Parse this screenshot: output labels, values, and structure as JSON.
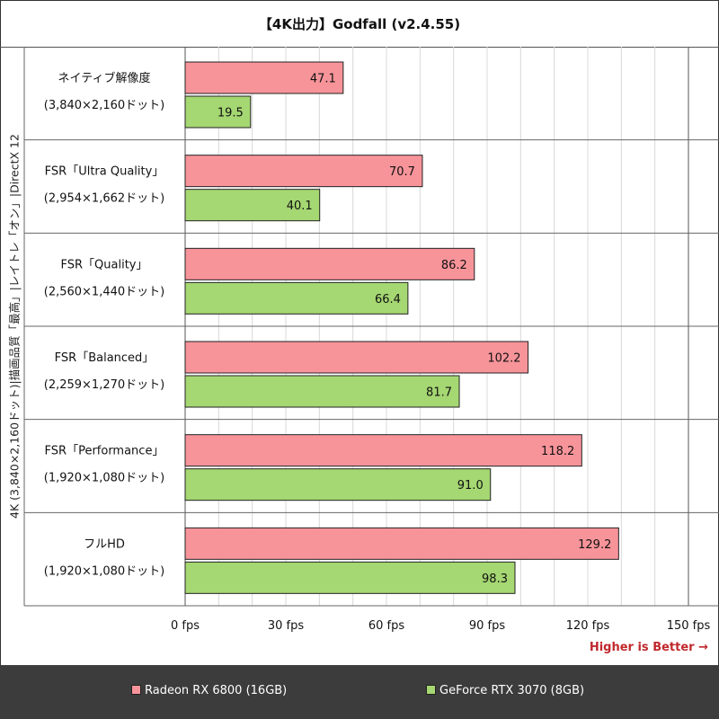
{
  "colors": {
    "radeon": "#f7949a",
    "geforce": "#a5d772",
    "grid": "#d8d8d8",
    "divider": "#666666"
  },
  "side_label": "4K (3,840×2,160ドット)|描画品質「最高」|レイトレ「オン」|DirectX 12",
  "footer": {
    "higher_is_better": "Higher is Better →"
  },
  "chart_data": {
    "type": "bar",
    "orientation": "horizontal",
    "title": "【4K出力】Godfall (v2.4.55)",
    "categories": [
      {
        "line1": "ネイティブ解像度",
        "line2": "(3,840×2,160ドット)"
      },
      {
        "line1": "FSR「Ultra Quality」",
        "line2": "(2,954×1,662ドット)"
      },
      {
        "line1": "FSR「Quality」",
        "line2": "(2,560×1,440ドット)"
      },
      {
        "line1": "FSR「Balanced」",
        "line2": "(2,259×1,270ドット)"
      },
      {
        "line1": "FSR「Performance」",
        "line2": "(1,920×1,080ドット)"
      },
      {
        "line1": "フルHD",
        "line2": "(1,920×1,080ドット)"
      }
    ],
    "series": [
      {
        "name": "Radeon RX 6800 (16GB)",
        "values": [
          47.1,
          70.7,
          86.2,
          102.2,
          118.2,
          129.2
        ],
        "labels": [
          "47.1",
          "70.7",
          "86.2",
          "102.2",
          "118.2",
          "129.2"
        ]
      },
      {
        "name": "GeForce RTX 3070 (8GB)",
        "values": [
          19.5,
          40.1,
          66.4,
          81.7,
          91.0,
          98.3
        ],
        "labels": [
          "19.5",
          "40.1",
          "66.4",
          "81.7",
          "91.0",
          "98.3"
        ]
      }
    ],
    "xlim": [
      0,
      150
    ],
    "ticks": [
      0,
      30,
      60,
      90,
      120,
      150
    ],
    "tick_labels": [
      "0 fps",
      "30 fps",
      "60 fps",
      "90 fps",
      "120 fps",
      "150 fps"
    ],
    "legend": "bottom"
  }
}
